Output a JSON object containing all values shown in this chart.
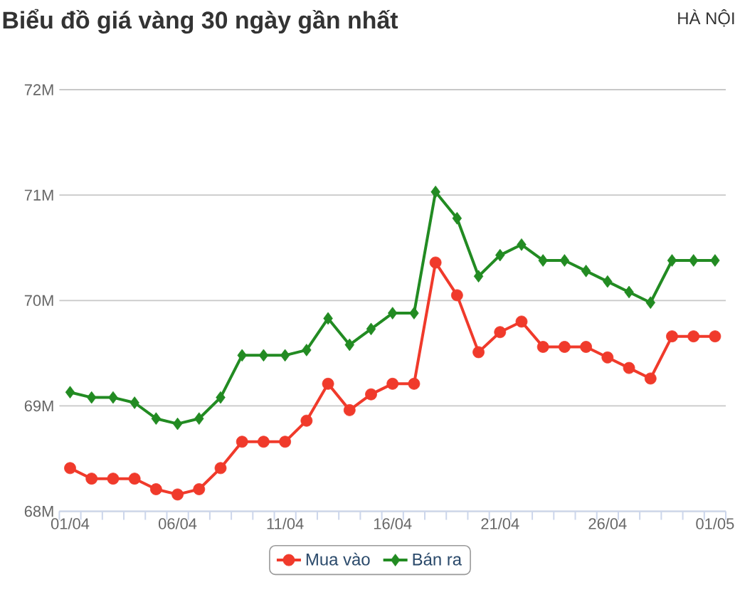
{
  "chart_data": {
    "type": "line",
    "title": "Biểu đồ giá vàng 30 ngày gần nhất",
    "subtitle": "HÀ NỘI",
    "categories": [
      "01/04",
      null,
      null,
      null,
      null,
      "06/04",
      null,
      null,
      null,
      null,
      "11/04",
      null,
      null,
      null,
      null,
      "16/04",
      null,
      null,
      null,
      null,
      "21/04",
      null,
      null,
      null,
      null,
      "26/04",
      null,
      null,
      null,
      null,
      "01/05"
    ],
    "series": [
      {
        "name": "Mua vào",
        "color": "#f03a2b",
        "marker": "circle",
        "values": [
          68.41,
          68.31,
          68.31,
          68.31,
          68.21,
          68.16,
          68.21,
          68.41,
          68.66,
          68.66,
          68.66,
          68.86,
          69.21,
          68.96,
          69.11,
          69.21,
          69.21,
          70.36,
          70.05,
          69.51,
          69.7,
          69.8,
          69.56,
          69.56,
          69.56,
          69.46,
          69.36,
          69.26,
          69.66,
          69.66,
          69.66
        ]
      },
      {
        "name": "Bán ra",
        "color": "#228b22",
        "marker": "diamond",
        "values": [
          69.13,
          69.08,
          69.08,
          69.03,
          68.88,
          68.83,
          68.88,
          69.08,
          69.48,
          69.48,
          69.48,
          69.53,
          69.83,
          69.58,
          69.73,
          69.88,
          69.88,
          71.03,
          70.78,
          70.23,
          70.43,
          70.53,
          70.38,
          70.38,
          70.28,
          70.18,
          70.08,
          69.98,
          70.38,
          70.38,
          70.38
        ]
      }
    ],
    "ylim": [
      68,
      72
    ],
    "yticks": [
      {
        "value": 68,
        "label": "68M"
      },
      {
        "value": 69,
        "label": "69M"
      },
      {
        "value": 70,
        "label": "70M"
      },
      {
        "value": 71,
        "label": "71M"
      },
      {
        "value": 72,
        "label": "72M"
      }
    ],
    "grid": "y",
    "legend": "bottom",
    "line_style": "solid"
  }
}
